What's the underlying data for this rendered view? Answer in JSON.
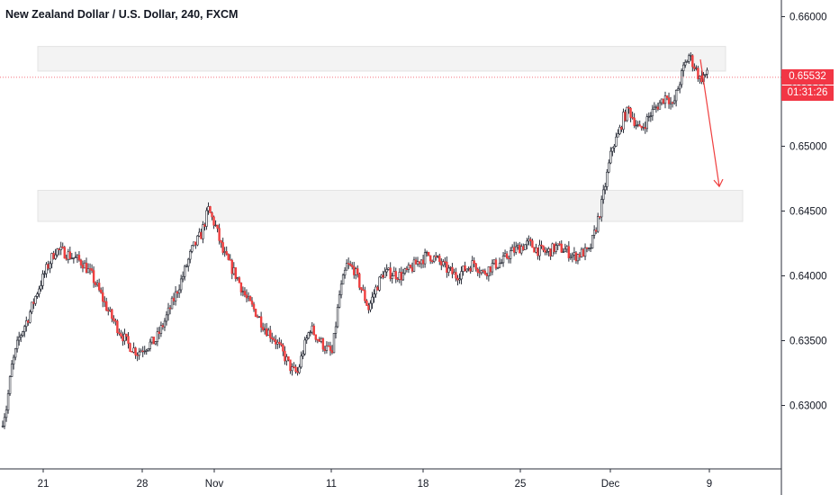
{
  "title": "New Zealand Dollar / U.S. Dollar, 240, FXCM",
  "colors": {
    "up": "#1e222d",
    "down": "#ef3f3f",
    "zone": "#f3f3f3",
    "zone_border": "#e3e3e3",
    "price_tag": "#f23645",
    "axis_text": "#131722",
    "arrow": "#ef3f3f"
  },
  "price_tag": {
    "price": "0.65532",
    "countdown": "01:31:26"
  },
  "chart_data": {
    "type": "candlestick",
    "symbol": "NZDUSD",
    "timeframe": "240",
    "source": "FXCM",
    "y_ticks": [
      "0.66000",
      "0.65500",
      "0.65000",
      "0.64500",
      "0.64000",
      "0.63500",
      "0.63000"
    ],
    "x_ticks": [
      "21",
      "28",
      "Nov",
      "11",
      "18",
      "25",
      "Dec",
      "9"
    ],
    "ylim": [
      0.6245,
      0.6618
    ],
    "current_price": 0.65532,
    "zones": [
      {
        "from": 0.6558,
        "to": 0.6577
      },
      {
        "from": 0.6442,
        "to": 0.6466
      }
    ],
    "arrow": {
      "from_price": 0.6567,
      "to_price": 0.6469,
      "direction": "down"
    },
    "trend": [
      [
        0,
        0.6284
      ],
      [
        3,
        0.6298
      ],
      [
        6,
        0.633
      ],
      [
        10,
        0.6352
      ],
      [
        15,
        0.6368
      ],
      [
        20,
        0.6388
      ],
      [
        25,
        0.6405
      ],
      [
        30,
        0.642
      ],
      [
        35,
        0.6418
      ],
      [
        40,
        0.6414
      ],
      [
        45,
        0.641
      ],
      [
        50,
        0.64
      ],
      [
        55,
        0.6385
      ],
      [
        60,
        0.637
      ],
      [
        65,
        0.6358
      ],
      [
        70,
        0.6347
      ],
      [
        75,
        0.6341
      ],
      [
        80,
        0.6346
      ],
      [
        85,
        0.635
      ],
      [
        90,
        0.6365
      ],
      [
        95,
        0.6382
      ],
      [
        100,
        0.64
      ],
      [
        105,
        0.642
      ],
      [
        110,
        0.6432
      ],
      [
        114,
        0.6451
      ],
      [
        118,
        0.6438
      ],
      [
        122,
        0.6418
      ],
      [
        126,
        0.6408
      ],
      [
        130,
        0.6398
      ],
      [
        135,
        0.6382
      ],
      [
        140,
        0.6372
      ],
      [
        145,
        0.636
      ],
      [
        150,
        0.6352
      ],
      [
        155,
        0.634
      ],
      [
        160,
        0.6327
      ],
      [
        163,
        0.6325
      ],
      [
        166,
        0.6342
      ],
      [
        170,
        0.636
      ],
      [
        174,
        0.6352
      ],
      [
        178,
        0.6345
      ],
      [
        182,
        0.634
      ],
      [
        186,
        0.6385
      ],
      [
        190,
        0.6408
      ],
      [
        194,
        0.6405
      ],
      [
        198,
        0.639
      ],
      [
        202,
        0.6375
      ],
      [
        206,
        0.639
      ],
      [
        210,
        0.6402
      ],
      [
        215,
        0.6402
      ],
      [
        220,
        0.64
      ],
      [
        225,
        0.6405
      ],
      [
        230,
        0.6412
      ],
      [
        235,
        0.6416
      ],
      [
        240,
        0.6412
      ],
      [
        245,
        0.6405
      ],
      [
        250,
        0.64
      ],
      [
        255,
        0.6405
      ],
      [
        260,
        0.641
      ],
      [
        265,
        0.6402
      ],
      [
        270,
        0.6408
      ],
      [
        275,
        0.641
      ],
      [
        280,
        0.6418
      ],
      [
        285,
        0.6422
      ],
      [
        290,
        0.6425
      ],
      [
        295,
        0.642
      ],
      [
        300,
        0.6418
      ],
      [
        305,
        0.6422
      ],
      [
        310,
        0.642
      ],
      [
        315,
        0.6415
      ],
      [
        320,
        0.6418
      ],
      [
        323,
        0.6418
      ],
      [
        326,
        0.6432
      ],
      [
        330,
        0.6455
      ],
      [
        333,
        0.6478
      ],
      [
        336,
        0.65
      ],
      [
        339,
        0.6508
      ],
      [
        342,
        0.6522
      ],
      [
        345,
        0.6528
      ],
      [
        348,
        0.652
      ],
      [
        351,
        0.6512
      ],
      [
        354,
        0.6518
      ],
      [
        357,
        0.6525
      ],
      [
        360,
        0.653
      ],
      [
        363,
        0.6535
      ],
      [
        366,
        0.654
      ],
      [
        369,
        0.653
      ],
      [
        372,
        0.6545
      ],
      [
        375,
        0.656
      ],
      [
        378,
        0.657
      ],
      [
        381,
        0.6562
      ],
      [
        384,
        0.6552
      ],
      [
        387,
        0.6555
      ]
    ]
  }
}
